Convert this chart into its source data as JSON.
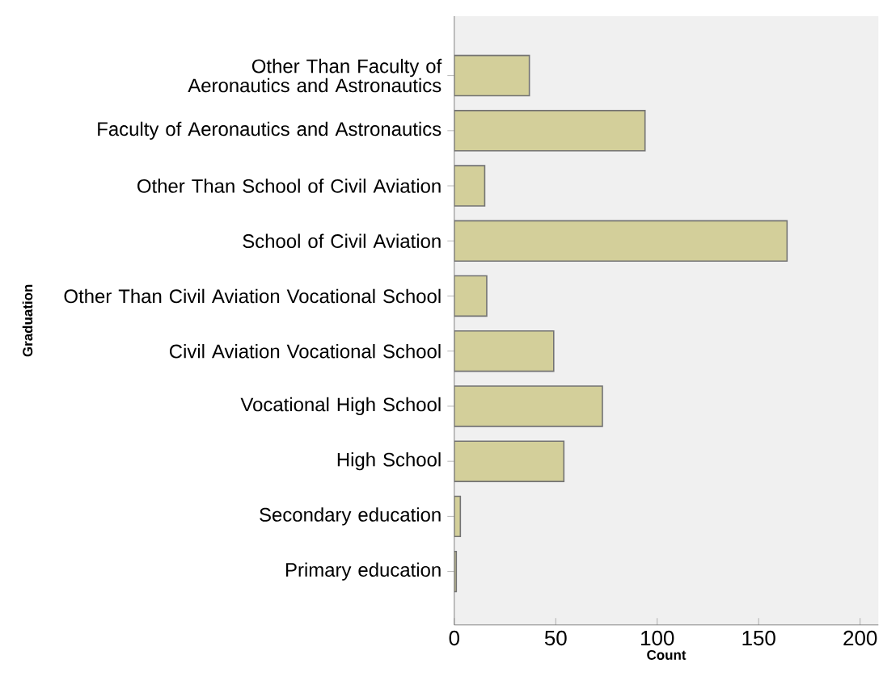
{
  "chart_data": {
    "type": "bar",
    "orientation": "horizontal",
    "xlabel": "Count",
    "ylabel": "Graduation",
    "categories": [
      "Other Than Faculty of Aeronautics and Astronautics",
      "Faculty of Aeronautics and Astronautics",
      "Other Than School of Civil Aviation",
      "School of Civil Aviation",
      "Other Than Civil Aviation Vocational School",
      "Civil Aviation Vocational School",
      "Vocational High School",
      "High School",
      "Secondary education",
      "Primary education"
    ],
    "values": [
      37,
      94,
      15,
      164,
      16,
      49,
      73,
      54,
      3,
      1
    ],
    "color": "#d3cf9a",
    "xlim": [
      0,
      209
    ],
    "xticks": [
      0,
      50,
      100,
      150,
      200
    ],
    "grid": false
  }
}
